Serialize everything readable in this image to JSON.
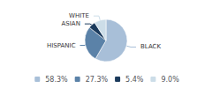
{
  "chart_data": {
    "type": "pie",
    "categories": [
      "BLACK",
      "HISPANIC",
      "ASIAN",
      "WHITE"
    ],
    "values": [
      58.3,
      27.3,
      5.4,
      9.0
    ],
    "value_labels": [
      "58.3%",
      "27.3%",
      "5.4%",
      "9.0%"
    ],
    "colors": [
      "#a8bfd8",
      "#5b82a8",
      "#1b3a5c",
      "#ccdde8"
    ],
    "legend": "bottom"
  }
}
